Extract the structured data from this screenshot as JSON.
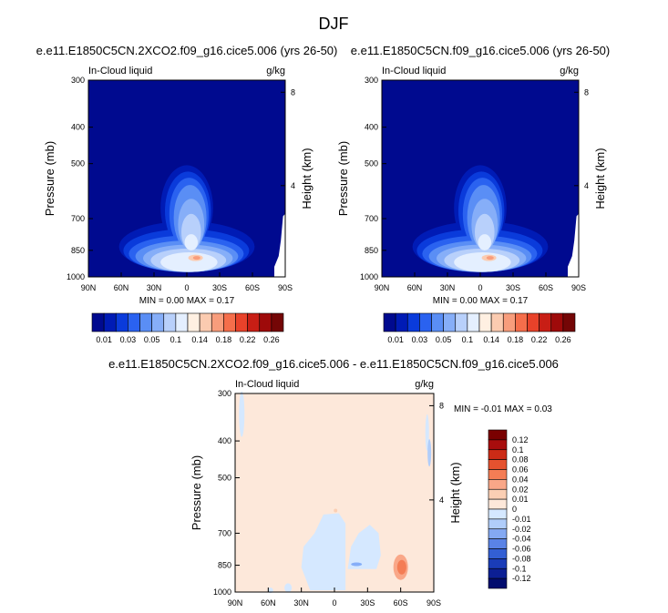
{
  "figure_title": "DJF",
  "chart_data": [
    {
      "type": "heatmap",
      "title": "e.e11.E1850C5CN.2XCO2.f09_g16.cice5.006 (yrs 26-50)",
      "field_label": "In-Cloud liquid",
      "units": "g/kg",
      "xlabel": "",
      "ylabel": "Pressure (mb)",
      "ylabel_right": "Height (km)",
      "x_ticks": [
        "90N",
        "60N",
        "30N",
        "0",
        "30S",
        "60S",
        "90S"
      ],
      "y_ticks": [
        "300",
        "400",
        "500",
        "700",
        "850",
        "1000"
      ],
      "y_ticks_right": [
        "8",
        "4"
      ],
      "y_scale": "log",
      "ylim": [
        1000,
        300
      ],
      "xlim": [
        90,
        -90
      ],
      "stats": "MIN =   0.00   MAX =   0.17",
      "min": 0.0,
      "max": 0.17,
      "colorbar_labels": [
        "0.01",
        "0.03",
        "0.05",
        "0.1",
        "0.14",
        "0.18",
        "0.22",
        "0.26"
      ]
    },
    {
      "type": "heatmap",
      "title": "e.e11.E1850C5CN.f09_g16.cice5.006 (yrs 26-50)",
      "field_label": "In-Cloud liquid",
      "units": "g/kg",
      "xlabel": "",
      "ylabel": "Pressure (mb)",
      "ylabel_right": "Height (km)",
      "x_ticks": [
        "90N",
        "60N",
        "30N",
        "0",
        "30S",
        "60S",
        "90S"
      ],
      "y_ticks": [
        "300",
        "400",
        "500",
        "700",
        "850",
        "1000"
      ],
      "y_ticks_right": [
        "8",
        "4"
      ],
      "y_scale": "log",
      "ylim": [
        1000,
        300
      ],
      "xlim": [
        90,
        -90
      ],
      "stats": "MIN =   0.00   MAX =   0.17",
      "min": 0.0,
      "max": 0.17,
      "colorbar_labels": [
        "0.01",
        "0.03",
        "0.05",
        "0.1",
        "0.14",
        "0.18",
        "0.22",
        "0.26"
      ]
    },
    {
      "type": "heatmap",
      "title": "e.e11.E1850C5CN.2XCO2.f09_g16.cice5.006 - e.e11.E1850C5CN.f09_g16.cice5.006",
      "field_label": "In-Cloud liquid",
      "units": "g/kg",
      "xlabel": "",
      "ylabel": "Pressure (mb)",
      "ylabel_right": "Height (km)",
      "x_ticks": [
        "90N",
        "60N",
        "30N",
        "0",
        "30S",
        "60S",
        "90S"
      ],
      "y_ticks": [
        "300",
        "400",
        "500",
        "700",
        "850",
        "1000"
      ],
      "y_ticks_right": [
        "8",
        "4"
      ],
      "y_scale": "log",
      "ylim": [
        1000,
        300
      ],
      "xlim": [
        90,
        -90
      ],
      "stats": "MIN =  -0.01   MAX =   0.03",
      "min": -0.01,
      "max": 0.03,
      "colorbar_labels": [
        "0.12",
        "0.1",
        "0.08",
        "0.06",
        "0.04",
        "0.02",
        "0.01",
        "0",
        "-0.01",
        "-0.02",
        "-0.04",
        "-0.06",
        "-0.08",
        "-0.1",
        "-0.12"
      ]
    }
  ],
  "colors": {
    "abs_scale": [
      "#000a8f",
      "#001bb5",
      "#0a3bdb",
      "#2a62f0",
      "#5a8ef5",
      "#86aef8",
      "#b8d0fb",
      "#e4efff",
      "#fff0e2",
      "#fbcbb0",
      "#f89d7c",
      "#f56e4b",
      "#e8422a",
      "#c81e15",
      "#9e0a0a",
      "#740606"
    ],
    "diff_scale": [
      "#7a0000",
      "#a80d0d",
      "#cc2b16",
      "#e5522f",
      "#f47d55",
      "#f9a788",
      "#fbcfb4",
      "#fde8da",
      "#d5e8ff",
      "#b0cdfa",
      "#84a9f2",
      "#5a83e6",
      "#335fd4",
      "#1a3cb8",
      "#0c1f94",
      "#020c6e"
    ],
    "background_positive": "#fde8da",
    "background_negative": "#d5e8ff"
  }
}
